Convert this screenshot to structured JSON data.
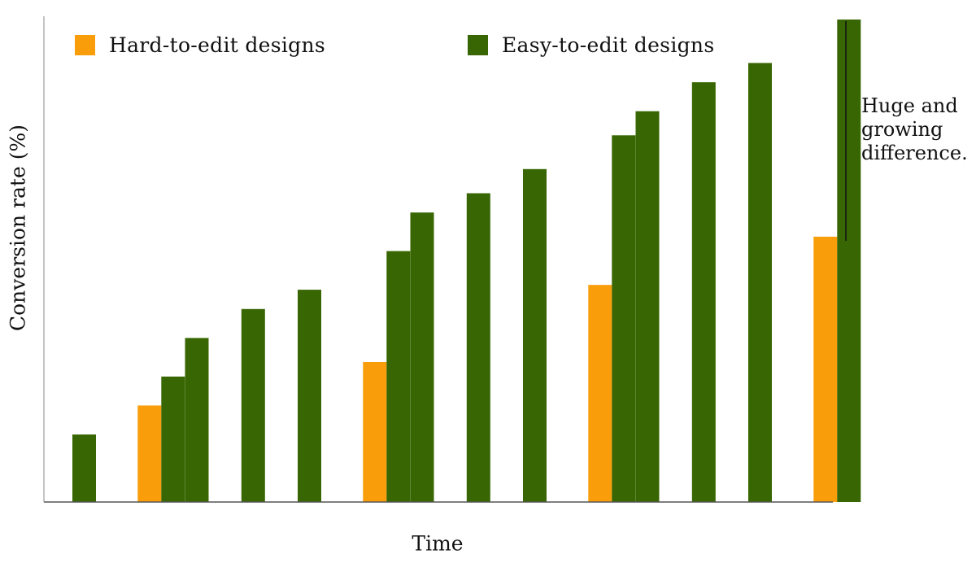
{
  "chart_data": {
    "type": "bar",
    "xlabel": "Time",
    "ylabel": "Conversion rate (%)",
    "ylim": [
      0,
      100
    ],
    "grid": false,
    "legend_position": "top",
    "num_periods": 14,
    "series": [
      {
        "name": "Hard-to-edit designs",
        "color": "#F99E0A",
        "values": [
          null,
          20,
          null,
          null,
          null,
          29,
          null,
          null,
          null,
          45,
          null,
          null,
          null,
          55
        ]
      },
      {
        "name": "Easy-to-edit designs",
        "color": "#386602",
        "values": [
          14,
          26,
          34,
          40,
          44,
          52,
          60,
          64,
          69,
          76,
          81,
          87,
          91,
          100
        ]
      }
    ],
    "annotation": {
      "lines": [
        "Huge and",
        "growing",
        "difference."
      ],
      "bracket": "vertical-line"
    }
  }
}
